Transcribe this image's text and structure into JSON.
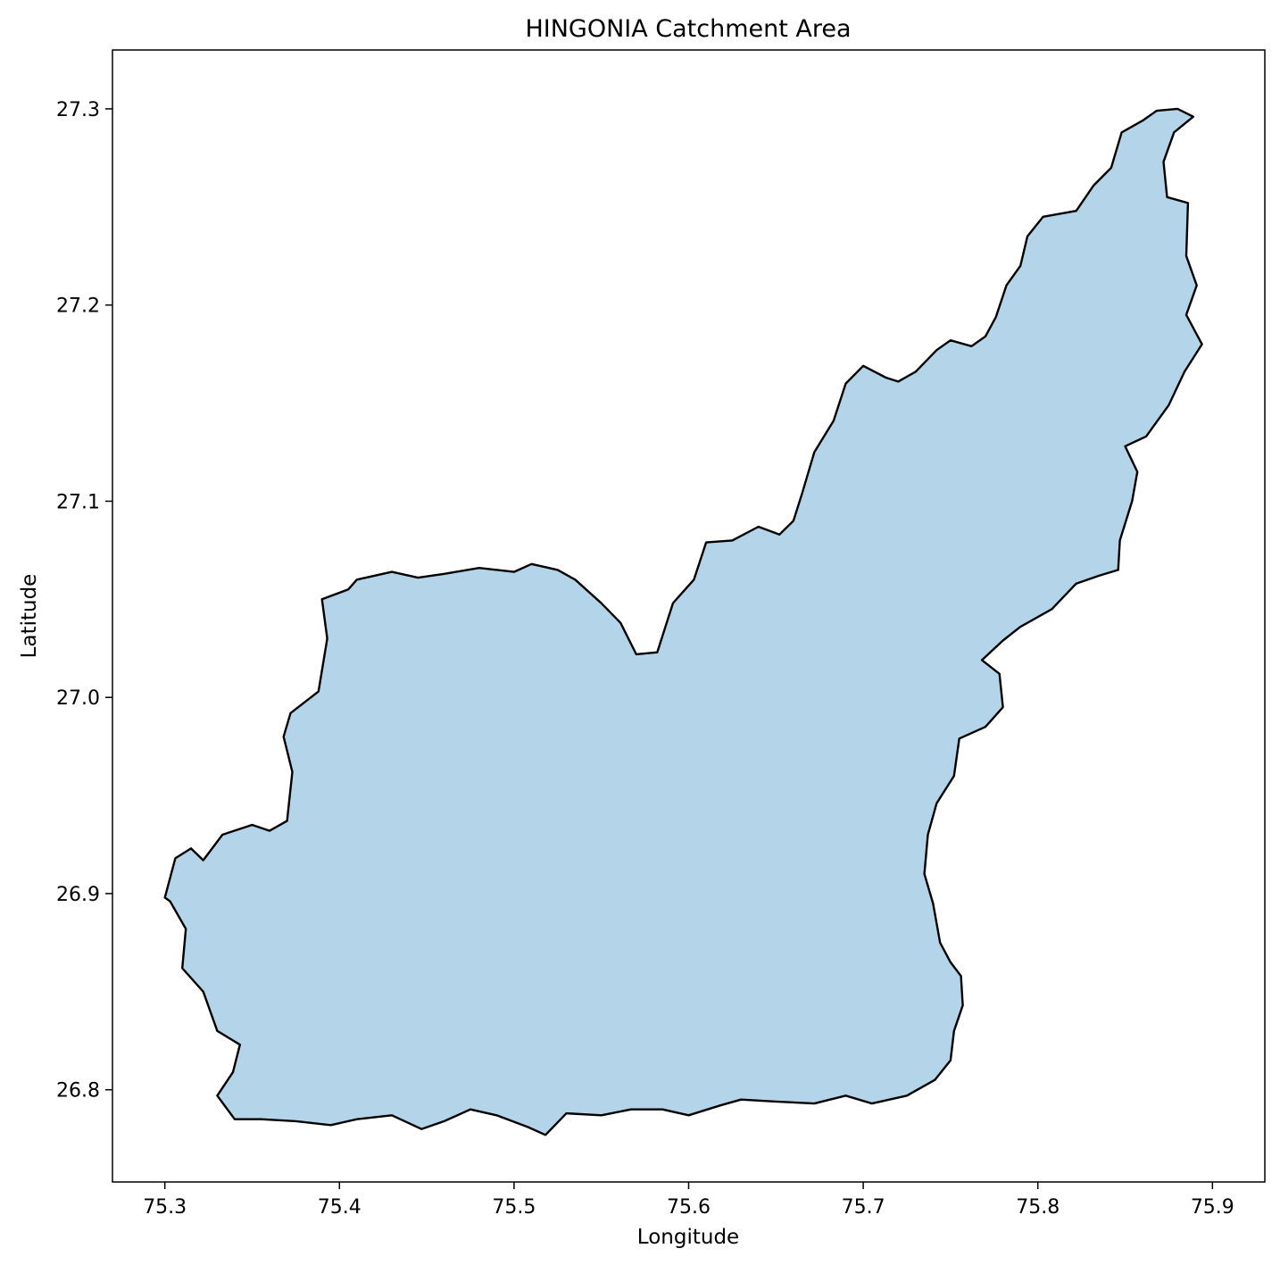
{
  "chart_data": {
    "type": "map",
    "title": "HINGONIA Catchment Area",
    "xlabel": "Longitude",
    "ylabel": "Latitude",
    "xlim": [
      75.27,
      75.93
    ],
    "ylim": [
      26.753,
      27.33
    ],
    "xticks": [
      "75.3",
      "75.4",
      "75.5",
      "75.6",
      "75.7",
      "75.8",
      "75.9"
    ],
    "xtick_values": [
      75.3,
      75.4,
      75.5,
      75.6,
      75.7,
      75.8,
      75.9
    ],
    "yticks": [
      "26.8",
      "26.9",
      "27.0",
      "27.1",
      "27.2",
      "27.3"
    ],
    "ytick_values": [
      26.8,
      26.9,
      27.0,
      27.1,
      27.2,
      27.3
    ],
    "grid": false,
    "fill_color": "#b3d4e9",
    "edge_color": "#000000",
    "boundary": [
      [
        75.3,
        26.898
      ],
      [
        75.306,
        26.918
      ],
      [
        75.315,
        26.923
      ],
      [
        75.322,
        26.917
      ],
      [
        75.333,
        26.93
      ],
      [
        75.35,
        26.935
      ],
      [
        75.36,
        26.932
      ],
      [
        75.37,
        26.937
      ],
      [
        75.373,
        26.962
      ],
      [
        75.368,
        26.98
      ],
      [
        75.372,
        26.992
      ],
      [
        75.388,
        27.003
      ],
      [
        75.393,
        27.03
      ],
      [
        75.39,
        27.05
      ],
      [
        75.405,
        27.055
      ],
      [
        75.41,
        27.06
      ],
      [
        75.43,
        27.064
      ],
      [
        75.445,
        27.061
      ],
      [
        75.46,
        27.063
      ],
      [
        75.48,
        27.066
      ],
      [
        75.5,
        27.064
      ],
      [
        75.51,
        27.068
      ],
      [
        75.525,
        27.065
      ],
      [
        75.535,
        27.06
      ],
      [
        75.55,
        27.048
      ],
      [
        75.561,
        27.038
      ],
      [
        75.57,
        27.022
      ],
      [
        75.582,
        27.023
      ],
      [
        75.591,
        27.048
      ],
      [
        75.603,
        27.06
      ],
      [
        75.61,
        27.079
      ],
      [
        75.625,
        27.08
      ],
      [
        75.64,
        27.087
      ],
      [
        75.652,
        27.083
      ],
      [
        75.66,
        27.09
      ],
      [
        75.665,
        27.104
      ],
      [
        75.672,
        27.125
      ],
      [
        75.683,
        27.141
      ],
      [
        75.69,
        27.16
      ],
      [
        75.7,
        27.169
      ],
      [
        75.713,
        27.163
      ],
      [
        75.72,
        27.161
      ],
      [
        75.73,
        27.166
      ],
      [
        75.742,
        27.177
      ],
      [
        75.75,
        27.182
      ],
      [
        75.762,
        27.179
      ],
      [
        75.77,
        27.184
      ],
      [
        75.776,
        27.194
      ],
      [
        75.782,
        27.21
      ],
      [
        75.79,
        27.22
      ],
      [
        75.794,
        27.235
      ],
      [
        75.803,
        27.245
      ],
      [
        75.822,
        27.248
      ],
      [
        75.832,
        27.261
      ],
      [
        75.842,
        27.27
      ],
      [
        75.848,
        27.288
      ],
      [
        75.86,
        27.294
      ],
      [
        75.868,
        27.299
      ],
      [
        75.88,
        27.3
      ],
      [
        75.889,
        27.296
      ],
      [
        75.878,
        27.288
      ],
      [
        75.872,
        27.273
      ],
      [
        75.874,
        27.255
      ],
      [
        75.886,
        27.252
      ],
      [
        75.885,
        27.225
      ],
      [
        75.891,
        27.21
      ],
      [
        75.885,
        27.195
      ],
      [
        75.894,
        27.18
      ],
      [
        75.884,
        27.166
      ],
      [
        75.875,
        27.149
      ],
      [
        75.862,
        27.133
      ],
      [
        75.85,
        27.128
      ],
      [
        75.857,
        27.115
      ],
      [
        75.854,
        27.1
      ],
      [
        75.847,
        27.08
      ],
      [
        75.846,
        27.065
      ],
      [
        75.835,
        27.062
      ],
      [
        75.822,
        27.058
      ],
      [
        75.808,
        27.045
      ],
      [
        75.79,
        27.036
      ],
      [
        75.78,
        27.029
      ],
      [
        75.768,
        27.019
      ],
      [
        75.778,
        27.012
      ],
      [
        75.78,
        26.995
      ],
      [
        75.77,
        26.985
      ],
      [
        75.755,
        26.979
      ],
      [
        75.752,
        26.96
      ],
      [
        75.742,
        26.946
      ],
      [
        75.737,
        26.93
      ],
      [
        75.735,
        26.91
      ],
      [
        75.74,
        26.895
      ],
      [
        75.744,
        26.875
      ],
      [
        75.75,
        26.865
      ],
      [
        75.756,
        26.858
      ],
      [
        75.757,
        26.843
      ],
      [
        75.752,
        26.83
      ],
      [
        75.75,
        26.815
      ],
      [
        75.741,
        26.805
      ],
      [
        75.725,
        26.797
      ],
      [
        75.705,
        26.793
      ],
      [
        75.69,
        26.797
      ],
      [
        75.672,
        26.793
      ],
      [
        75.65,
        26.794
      ],
      [
        75.63,
        26.795
      ],
      [
        75.618,
        26.792
      ],
      [
        75.6,
        26.787
      ],
      [
        75.585,
        26.79
      ],
      [
        75.567,
        26.79
      ],
      [
        75.55,
        26.787
      ],
      [
        75.53,
        26.788
      ],
      [
        75.518,
        26.777
      ],
      [
        75.508,
        26.781
      ],
      [
        75.49,
        26.787
      ],
      [
        75.475,
        26.79
      ],
      [
        75.46,
        26.784
      ],
      [
        75.447,
        26.78
      ],
      [
        75.43,
        26.787
      ],
      [
        75.41,
        26.785
      ],
      [
        75.395,
        26.782
      ],
      [
        75.375,
        26.784
      ],
      [
        75.355,
        26.785
      ],
      [
        75.34,
        26.785
      ],
      [
        75.33,
        26.797
      ],
      [
        75.339,
        26.809
      ],
      [
        75.343,
        26.823
      ],
      [
        75.33,
        26.83
      ],
      [
        75.322,
        26.85
      ],
      [
        75.31,
        26.862
      ],
      [
        75.312,
        26.882
      ],
      [
        75.303,
        26.896
      ]
    ]
  }
}
